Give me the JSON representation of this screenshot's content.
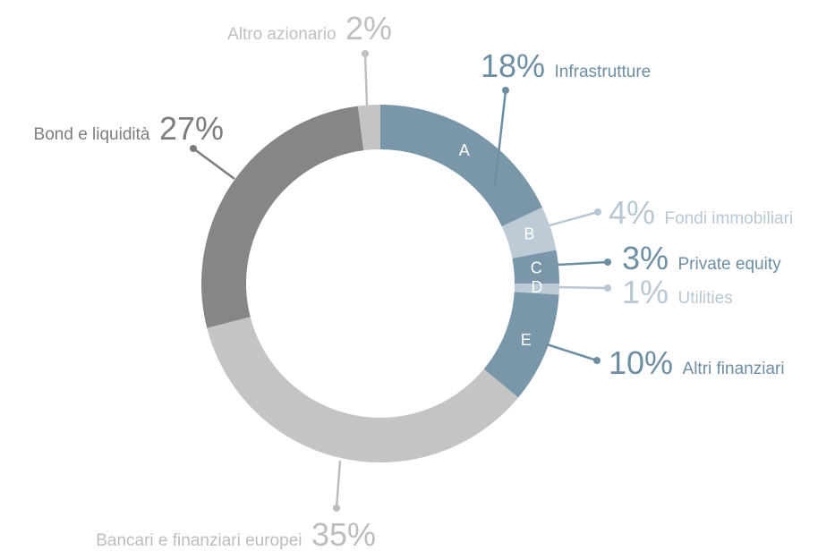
{
  "chart_data": {
    "type": "donut",
    "categories": [
      "Infrastrutture",
      "Fondi immobiliari",
      "Private equity",
      "Utilities",
      "Altri finanziari",
      "Bancari e finanziari europei",
      "Bond e liquidità",
      "Altro azionario"
    ],
    "values": [
      18,
      4,
      3,
      1,
      10,
      35,
      27,
      2
    ],
    "value_labels": [
      "18%",
      "4%",
      "3%",
      "1%",
      "10%",
      "35%",
      "27%",
      "2%"
    ],
    "slice_letters": [
      "A",
      "B",
      "C",
      "D",
      "E",
      null,
      null,
      null
    ],
    "colors": [
      "#7a97aa",
      "#bccbd5",
      "#7a97aa",
      "#bccbd5",
      "#7a97aa",
      "#c4c4c4",
      "#868686",
      "#c4c4c4"
    ]
  }
}
